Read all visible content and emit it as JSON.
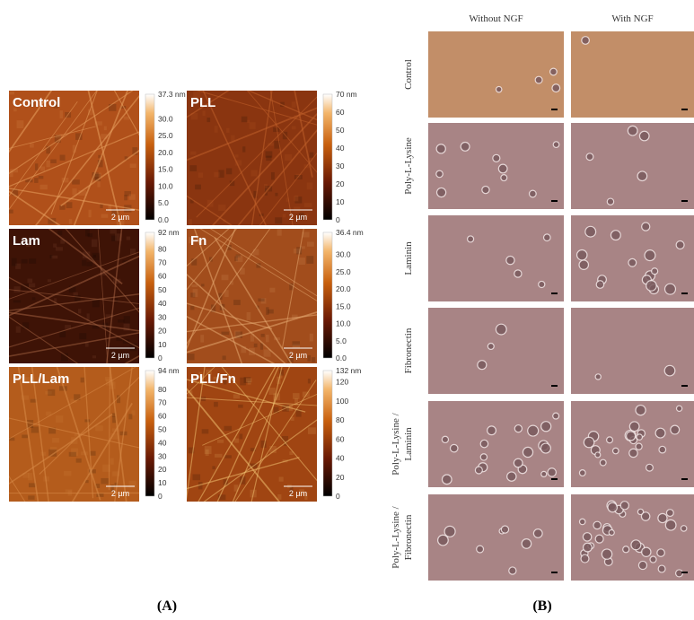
{
  "panel_a": {
    "label": "(A)",
    "images": [
      {
        "label": "Control",
        "scale_bar": "2 µm",
        "colorbar_ticks": [
          "37.3 nm",
          "30.0",
          "25.0",
          "20.0",
          "15.0",
          "10.0",
          "5.0",
          "0.0"
        ]
      },
      {
        "label": "PLL",
        "scale_bar": "2 µm",
        "colorbar_ticks": [
          "70 nm",
          "60",
          "50",
          "40",
          "30",
          "20",
          "10",
          "0"
        ]
      },
      {
        "label": "Lam",
        "scale_bar": "2 µm",
        "colorbar_ticks": [
          "92 nm",
          "80",
          "70",
          "60",
          "50",
          "40",
          "30",
          "20",
          "10",
          "0"
        ]
      },
      {
        "label": "Fn",
        "scale_bar": "2 µm",
        "colorbar_ticks": [
          "36.4 nm",
          "30.0",
          "25.0",
          "20.0",
          "15.0",
          "10.0",
          "5.0",
          "0.0"
        ]
      },
      {
        "label": "PLL/Lam",
        "scale_bar": "2 µm",
        "colorbar_ticks": [
          "94 nm",
          "80",
          "70",
          "60",
          "50",
          "40",
          "30",
          "20",
          "10",
          "0"
        ]
      },
      {
        "label": "PLL/Fn",
        "scale_bar": "2 µm",
        "colorbar_ticks": [
          "132 nm",
          "120",
          "100",
          "80",
          "60",
          "40",
          "20",
          "0"
        ]
      }
    ]
  },
  "panel_b": {
    "label": "(B)",
    "columns": [
      "Without NGF",
      "With NGF"
    ],
    "rows": [
      [
        "Control"
      ],
      [
        "Poly-L-Lysine"
      ],
      [
        "Laminin"
      ],
      [
        "Fibronectin"
      ],
      [
        "Poly-L-Lysine /",
        "Laminin"
      ],
      [
        "Poly-L-Lysine /",
        "Fibronectin"
      ]
    ]
  }
}
